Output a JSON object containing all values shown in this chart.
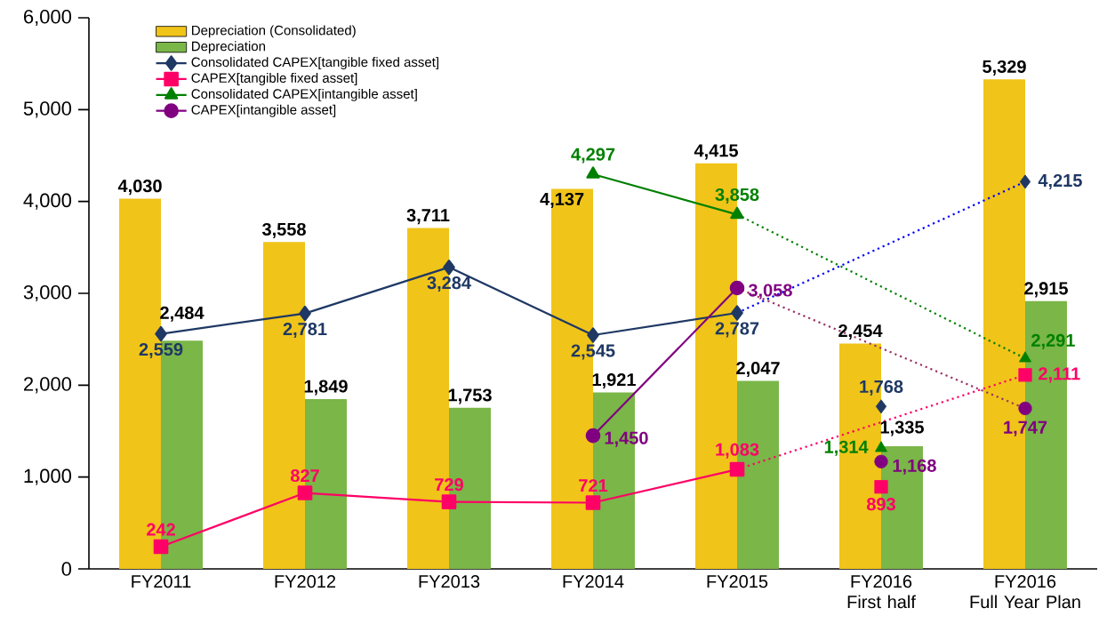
{
  "chart_data": {
    "type": "bar",
    "categories": [
      "FY2011",
      "FY2012",
      "FY2013",
      "FY2014",
      "FY2015",
      "FY2016\nFirst half",
      "FY2016\nFull Year Plan"
    ],
    "ylim": [
      0,
      6000
    ],
    "yticks": [
      {
        "value": 0,
        "label": "0"
      },
      {
        "value": 1000,
        "label": "1,000"
      },
      {
        "value": 2000,
        "label": "2,000"
      },
      {
        "value": 3000,
        "label": "3,000"
      },
      {
        "value": 4000,
        "label": "4,000"
      },
      {
        "value": 5000,
        "label": "5,000"
      },
      {
        "value": 6000,
        "label": "6,000"
      }
    ],
    "grid": false,
    "legend": "top left",
    "series": [
      {
        "name": "Depreciation (Consolidated)",
        "color": "#f0c419",
        "values": [
          4030,
          3558,
          3711,
          4137,
          4415,
          2454,
          5329
        ],
        "value_labels": [
          "4,030",
          "3,558",
          "3,711",
          "4,137",
          "4,415",
          "2,454",
          "5,329"
        ]
      },
      {
        "name": "Depreciation",
        "color": "#7ab648",
        "values": [
          2484,
          1849,
          1753,
          1921,
          2047,
          1335,
          2915
        ],
        "value_labels": [
          "2,484",
          "1,849",
          "1,753",
          "1,921",
          "2,047",
          "1,335",
          "2,915"
        ]
      },
      {
        "type": "line",
        "name": "Consolidated CAPEX[tangible fixed asset]",
        "color": "#1f3864",
        "marker": "diamond",
        "line_style": "solid",
        "values": [
          2559,
          2781,
          3284,
          2545,
          2787,
          null,
          null
        ],
        "value_labels": [
          "2,559",
          "2,781",
          "3,284",
          "2,545",
          "2,787",
          null,
          null
        ]
      },
      {
        "type": "line",
        "name": "CAPEX[tangible fixed asset]",
        "color": "#ff0066",
        "marker": "square",
        "line_style": "solid",
        "values": [
          242,
          827,
          729,
          721,
          1083,
          null,
          null
        ],
        "value_labels": [
          "242",
          "827",
          "729",
          "721",
          "1,083",
          null,
          null
        ]
      },
      {
        "type": "line",
        "name": "Consolidated CAPEX[intangible asset]",
        "color": "#008000",
        "marker": "triangle",
        "line_style": "solid",
        "values": [
          null,
          null,
          null,
          4297,
          3858,
          null,
          null
        ],
        "value_labels": [
          null,
          null,
          null,
          "4,297",
          "3,858",
          null,
          null
        ]
      },
      {
        "type": "line",
        "name": "CAPEX[intangible asset]",
        "color": "#800080",
        "marker": "circle",
        "line_style": "solid",
        "values": [
          null,
          null,
          null,
          1450,
          3058,
          null,
          null
        ],
        "value_labels": [
          null,
          null,
          null,
          "1,450",
          "3,058",
          null,
          null
        ]
      },
      {
        "type": "line",
        "color": "#0000ff",
        "marker": "none",
        "line_style": "dotted",
        "values": [
          null,
          null,
          null,
          null,
          2787,
          null,
          4215
        ]
      },
      {
        "type": "line",
        "color": "#ff0066",
        "marker": "none",
        "line_style": "dotted",
        "values": [
          null,
          null,
          null,
          null,
          1083,
          null,
          2111
        ]
      },
      {
        "type": "line",
        "color": "#008000",
        "marker": "none",
        "line_style": "dotted",
        "values": [
          null,
          null,
          null,
          null,
          3858,
          null,
          2291
        ]
      },
      {
        "type": "line",
        "color": "#993366",
        "marker": "none",
        "line_style": "dotted",
        "values": [
          null,
          null,
          null,
          null,
          3058,
          null,
          1747
        ]
      },
      {
        "type": "scatter",
        "color": "#1f3864",
        "marker": "diamond",
        "values": [
          null,
          null,
          null,
          null,
          null,
          1768,
          4215
        ],
        "value_labels": [
          null,
          null,
          null,
          null,
          null,
          "1,768",
          "4,215"
        ]
      },
      {
        "type": "scatter",
        "color": "#ff0066",
        "marker": "square",
        "values": [
          null,
          null,
          null,
          null,
          null,
          893,
          2111
        ],
        "value_labels": [
          null,
          null,
          null,
          null,
          null,
          "893",
          "2,111"
        ]
      },
      {
        "type": "scatter",
        "color": "#008000",
        "marker": "triangle",
        "values": [
          null,
          null,
          null,
          null,
          null,
          1314,
          2291
        ],
        "value_labels": [
          null,
          null,
          null,
          null,
          null,
          "1,314",
          "2,291"
        ]
      },
      {
        "type": "scatter",
        "color": "#800080",
        "marker": "circle",
        "values": [
          null,
          null,
          null,
          null,
          null,
          1168,
          1747
        ],
        "value_labels": [
          null,
          null,
          null,
          null,
          null,
          "1,168",
          "1,747"
        ]
      }
    ]
  }
}
